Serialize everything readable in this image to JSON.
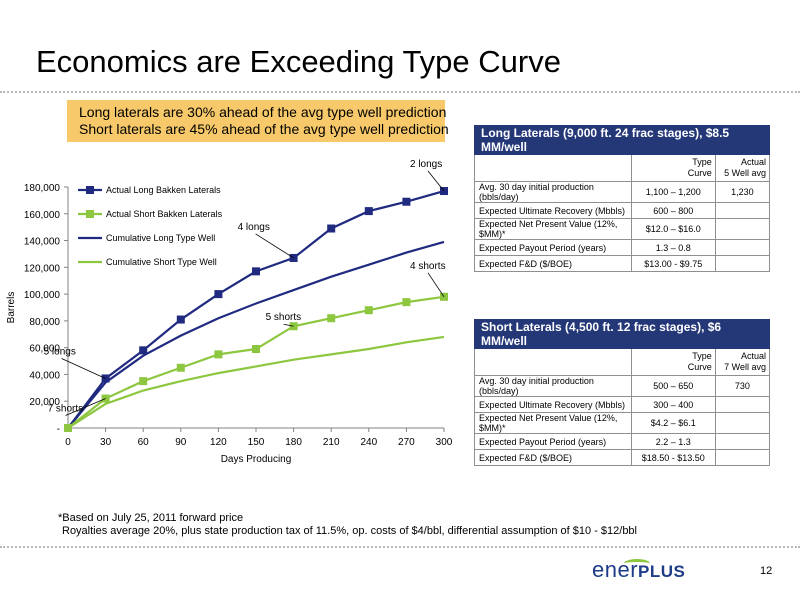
{
  "slide": {
    "title": "Economics are Exceeding Type Curve",
    "callout": [
      "Long laterals are 30% ahead of the avg type well prediction",
      "Short laterals are 45% ahead of the avg type well prediction"
    ],
    "footnote_line1": "*Based on July 25, 2011 forward price",
    "footnote_line2": "Royalties average 20%, plus state production tax of 11.5%, op. costs of $4/bbl, differential assumption of $10 - $12/bbl",
    "logo_part1": "ener",
    "logo_part2": "PLUS",
    "page_number": "12"
  },
  "chart_data": {
    "type": "line",
    "xlabel": "Days Producing",
    "ylabel": "Barrels",
    "x": [
      0,
      30,
      60,
      90,
      120,
      150,
      180,
      210,
      240,
      270,
      300
    ],
    "xlim": [
      0,
      300
    ],
    "ylim": [
      0,
      180000
    ],
    "y_ticks": [
      0,
      20000,
      40000,
      60000,
      80000,
      100000,
      120000,
      140000,
      160000,
      180000
    ],
    "y_tick_labels": [
      "-",
      "20,000",
      "40,000",
      "60,000",
      "80,000",
      "100,000",
      "120,000",
      "140,000",
      "160,000",
      "180,000"
    ],
    "x_tick_labels": [
      "0",
      "30",
      "60",
      "90",
      "120",
      "150",
      "180",
      "210",
      "240",
      "270",
      "300"
    ],
    "legend_position": "top-left",
    "series": [
      {
        "name": "Actual Long Bakken Laterals",
        "color": "#1f2a80",
        "marker": "square",
        "values": [
          0,
          37000,
          58000,
          81000,
          100000,
          117000,
          127000,
          149000,
          162000,
          169000,
          177000
        ]
      },
      {
        "name": "Actual Short Bakken Laterals",
        "color": "#8dc63f",
        "marker": "square",
        "values": [
          0,
          22000,
          35000,
          45000,
          55000,
          59000,
          76000,
          82000,
          88000,
          94000,
          98000
        ]
      },
      {
        "name": "Cumulative Long Type Well",
        "color": "#1f2a80",
        "marker": "none",
        "values": [
          0,
          34000,
          54000,
          69000,
          82000,
          93000,
          103000,
          113000,
          122000,
          131000,
          139000
        ]
      },
      {
        "name": "Cumulative Short Type Well",
        "color": "#8dc63f",
        "marker": "none",
        "values": [
          0,
          18000,
          28000,
          35000,
          41000,
          46000,
          51000,
          55000,
          59000,
          64000,
          68000
        ]
      }
    ],
    "annotations": [
      {
        "text": "2 longs",
        "x": 300,
        "y": 177000
      },
      {
        "text": "4 longs",
        "x": 180,
        "y": 127000
      },
      {
        "text": "4 shorts",
        "x": 300,
        "y": 98000
      },
      {
        "text": "5 shorts",
        "x": 180,
        "y": 76000
      },
      {
        "text": "5 longs",
        "x": 30,
        "y": 37000
      },
      {
        "text": "7 shorts",
        "x": 30,
        "y": 22000
      }
    ]
  },
  "long_table": {
    "header": "Long Laterals (9,000 ft. 24 frac stages), $8.5 MM/well",
    "col1_line1": "Type",
    "col1_line2": "Curve",
    "col2_line1": "Actual",
    "col2_line2": "5 Well avg",
    "rows": [
      {
        "label": "Avg. 30 day initial production (bbls/day)",
        "type": "1,100 – 1,200",
        "actual": "1,230"
      },
      {
        "label": "Expected Ultimate Recovery (Mbbls)",
        "type": "600 – 800",
        "actual": ""
      },
      {
        "label": "Expected Net Present Value (12%, $MM)*",
        "type": "$12.0 – $16.0",
        "actual": ""
      },
      {
        "label": "Expected Payout Period (years)",
        "type": "1.3 – 0.8",
        "actual": ""
      },
      {
        "label": "Expected F&D ($/BOE)",
        "type": "$13.00 - $9.75",
        "actual": ""
      }
    ]
  },
  "short_table": {
    "header": "Short Laterals (4,500 ft. 12 frac stages), $6 MM/well",
    "col1_line1": "Type",
    "col1_line2": "Curve",
    "col2_line1": "Actual",
    "col2_line2": "7 Well avg",
    "rows": [
      {
        "label": "Avg. 30 day initial production (bbls/day)",
        "type": "500 – 650",
        "actual": "730"
      },
      {
        "label": "Expected Ultimate Recovery (Mbbls)",
        "type": "300 – 400",
        "actual": ""
      },
      {
        "label": "Expected Net Present Value (12%, $MM)*",
        "type": "$4.2 – $6.1",
        "actual": ""
      },
      {
        "label": "Expected Payout Period (years)",
        "type": "2.2 – 1.3",
        "actual": ""
      },
      {
        "label": "Expected F&D ($/BOE)",
        "type": "$18.50 - $13.50",
        "actual": ""
      }
    ]
  }
}
